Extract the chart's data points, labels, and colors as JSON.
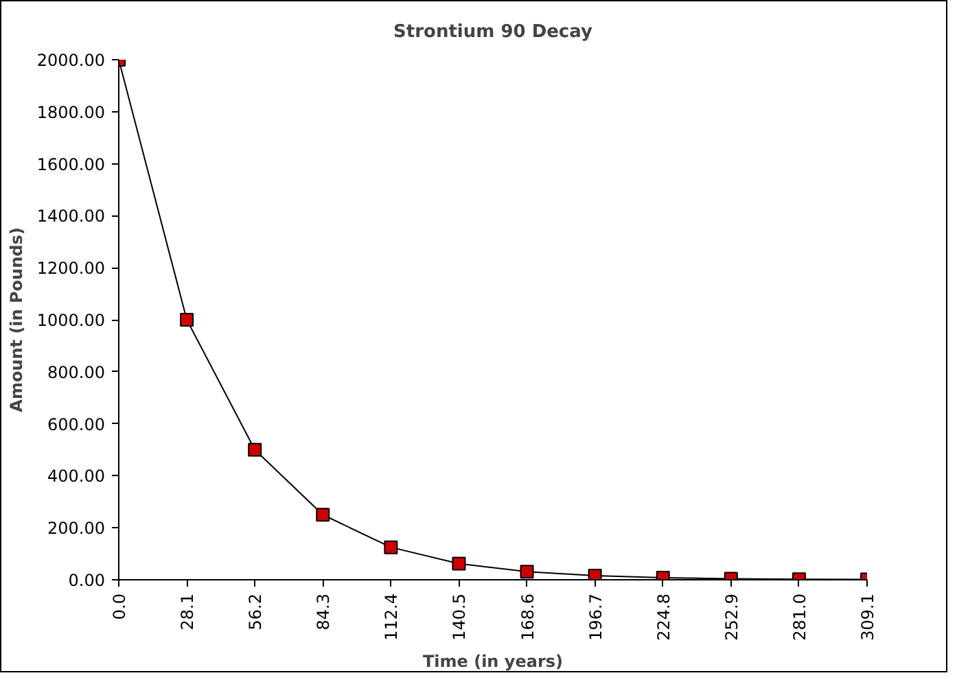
{
  "chart_data": {
    "type": "line",
    "title": "Strontium 90 Decay",
    "xlabel": "Time (in years)",
    "ylabel": "Amount (in Pounds)",
    "x": [
      0,
      28.1,
      56.2,
      84.3,
      112.4,
      140.5,
      168.6,
      196.7,
      224.8,
      252.9,
      281.0,
      309.1
    ],
    "series": [
      {
        "color": "#cc0000",
        "values": [
          2000,
          1000,
          500,
          250,
          125,
          62,
          31,
          16,
          8,
          4,
          2,
          1
        ]
      }
    ],
    "xlim": [
      0,
      309.1
    ],
    "xticks": [
      {
        "value": 0,
        "label": "0.0"
      },
      28.1,
      56.2,
      84.3,
      112.4,
      140.5,
      168.6,
      196.7,
      224.8,
      252.9,
      {
        "value": 281.0,
        "label": "281.0"
      },
      309.1
    ],
    "ylim": [
      0,
      2000
    ],
    "yticks": [
      {
        "value": 0,
        "label": "0.00"
      },
      {
        "value": 200,
        "label": "200.00"
      },
      {
        "value": 400,
        "label": "400.00"
      },
      {
        "value": 600,
        "label": "600.00"
      },
      {
        "value": 800,
        "label": "800.00"
      },
      {
        "value": 1000,
        "label": "1000.00"
      },
      {
        "value": 1200,
        "label": "1200.00"
      },
      {
        "value": 1400,
        "label": "1400.00"
      },
      {
        "value": 1600,
        "label": "1600.00"
      },
      {
        "value": 1800,
        "label": "1800.00"
      },
      {
        "value": 2000,
        "label": "2000.00"
      }
    ],
    "marker": "square",
    "grid": false
  }
}
